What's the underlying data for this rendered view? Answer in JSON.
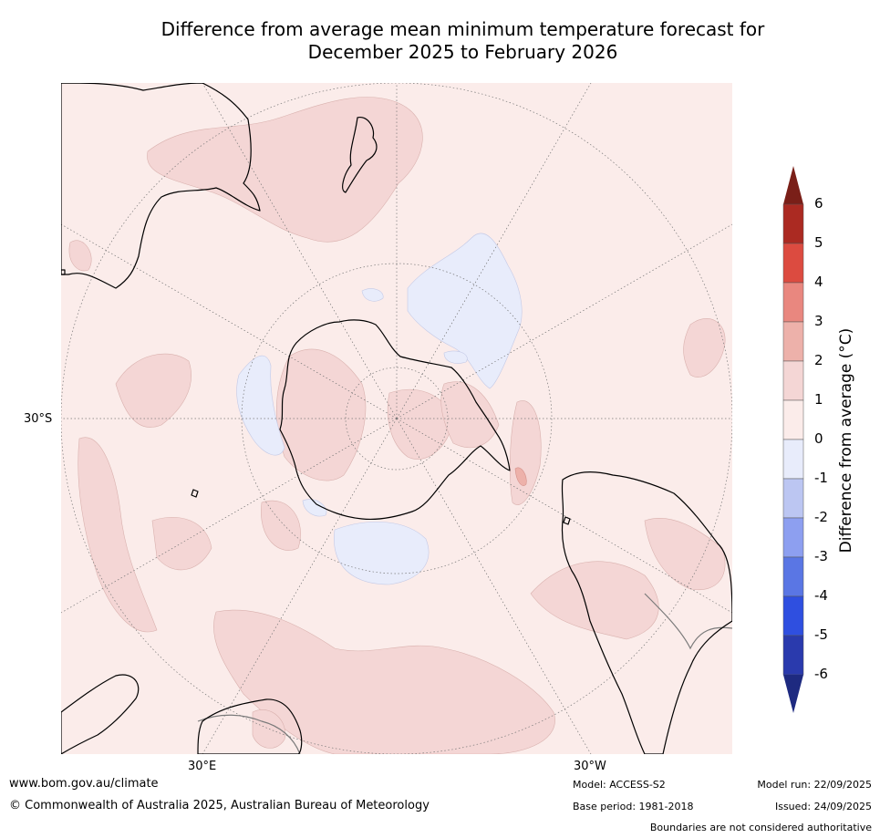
{
  "title": {
    "line1": "Difference from average mean minimum temperature forecast for",
    "line2": "December 2025 to February 2026"
  },
  "map": {
    "projection": "South polar stereographic",
    "latitude_labels": [
      "30°S"
    ],
    "longitude_labels": [
      "30°E",
      "30°W"
    ],
    "colors": {
      "background_0_to_1": "#fbecea",
      "band_1_to_2": "#f4d6d5",
      "band_2_to_3": "#edb1aa",
      "band_minus1_to_0": "#e8ecfb",
      "coastline": "#000000",
      "boundary": "#7a7a7a",
      "graticule": "#777777"
    },
    "regions": [
      "Antarctica",
      "Australia",
      "New Zealand",
      "South America",
      "Africa"
    ]
  },
  "colorbar": {
    "title": "Difference from average (°C)",
    "ticks": [
      "6",
      "5",
      "4",
      "3",
      "2",
      "1",
      "0",
      "-1",
      "-2",
      "-3",
      "-4",
      "-5",
      "-6"
    ],
    "bands": [
      {
        "from": 5,
        "to": 6,
        "color": "#ab2a22"
      },
      {
        "from": 4,
        "to": 5,
        "color": "#dc4b40"
      },
      {
        "from": 3,
        "to": 4,
        "color": "#e9877f"
      },
      {
        "from": 2,
        "to": 3,
        "color": "#edb1aa"
      },
      {
        "from": 1,
        "to": 2,
        "color": "#f4d6d5"
      },
      {
        "from": 0,
        "to": 1,
        "color": "#fbecea"
      },
      {
        "from": -1,
        "to": 0,
        "color": "#e8ecfb"
      },
      {
        "from": -2,
        "to": -1,
        "color": "#bcc6f2"
      },
      {
        "from": -3,
        "to": -2,
        "color": "#8d9ff0"
      },
      {
        "from": -4,
        "to": -3,
        "color": "#5a76e4"
      },
      {
        "from": -5,
        "to": -4,
        "color": "#2f4fe0"
      },
      {
        "from": -6,
        "to": -5,
        "color": "#2a3aad"
      }
    ],
    "extend_max_color": "#7a1f18",
    "extend_min_color": "#1e2a80"
  },
  "footer": {
    "website": "www.bom.gov.au/climate",
    "copyright": "© Commonwealth of Australia 2025, Australian Bureau of Meteorology",
    "model": "Model: ACCESS-S2",
    "base_period": "Base period: 1981-2018",
    "model_run": "Model run: 22/09/2025",
    "issued": "Issued: 24/09/2025",
    "disclaimer": "Boundaries are not considered authoritative"
  }
}
